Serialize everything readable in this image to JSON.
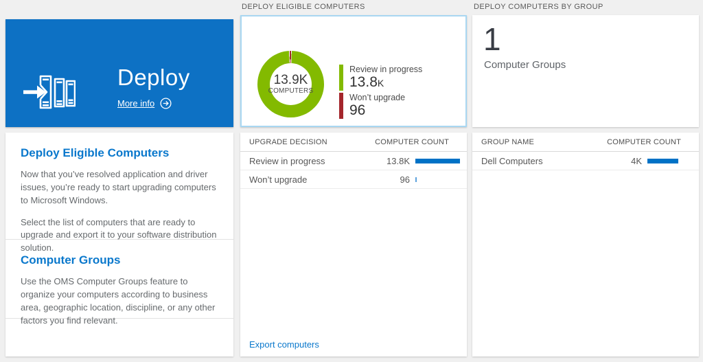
{
  "colors": {
    "tile_blue": "#0d71c4",
    "accent_blue": "#0a78cc",
    "bar_blue": "#0072c6",
    "selected_border": "#a8d7f2",
    "donut_green": "#83ba00",
    "donut_red": "#a4262c",
    "page_bg": "#f0f0f0"
  },
  "left": {
    "tile": {
      "title": "Deploy",
      "more_info_label": "More info"
    },
    "sections": [
      {
        "heading": "Deploy Eligible Computers",
        "paragraphs": [
          "Now that you’ve resolved application and driver issues, you’re ready to start upgrading computers to Microsoft Windows.",
          "Select the list of computers that are ready to upgrade and export it to your software distribution solution."
        ]
      },
      {
        "heading": "Computer Groups",
        "paragraphs": [
          "Use the OMS Computer Groups feature to organize your computers according to business area, geographic location, discipline, or any other factors you find relevant."
        ]
      }
    ]
  },
  "middle": {
    "header": "DEPLOY ELIGIBLE COMPUTERS",
    "donut": {
      "center_value": "13.9K",
      "center_label": "COMPUTERS"
    },
    "legend": [
      {
        "label": "Review in progress",
        "value": "13.8",
        "suffix": "K"
      },
      {
        "label": "Won’t upgrade",
        "value": "96",
        "suffix": ""
      }
    ],
    "table": {
      "col1": "UPGRADE DECISION",
      "col2": "COMPUTER COUNT",
      "rows": [
        {
          "name": "Review in progress",
          "count": "13.8K",
          "bar_pct": 100
        },
        {
          "name": "Won’t upgrade",
          "count": "96",
          "bar_pct": 3
        }
      ]
    },
    "export_link": "Export computers"
  },
  "right": {
    "header": "DEPLOY COMPUTERS BY GROUP",
    "summary": {
      "value": "1",
      "label": "Computer Groups"
    },
    "table": {
      "col1": "GROUP NAME",
      "col2": "COMPUTER COUNT",
      "rows": [
        {
          "name": "Dell Computers",
          "count": "4K",
          "bar_pct": 69
        }
      ]
    }
  },
  "chart_data": {
    "type": "pie",
    "title": "Deploy Eligible Computers",
    "labels": [
      "Review in progress",
      "Won't upgrade"
    ],
    "values": [
      13800,
      96
    ],
    "colors": [
      "#83ba00",
      "#a4262c"
    ],
    "center_text": [
      "13.9K",
      "COMPUTERS"
    ],
    "legend_position": "right"
  }
}
